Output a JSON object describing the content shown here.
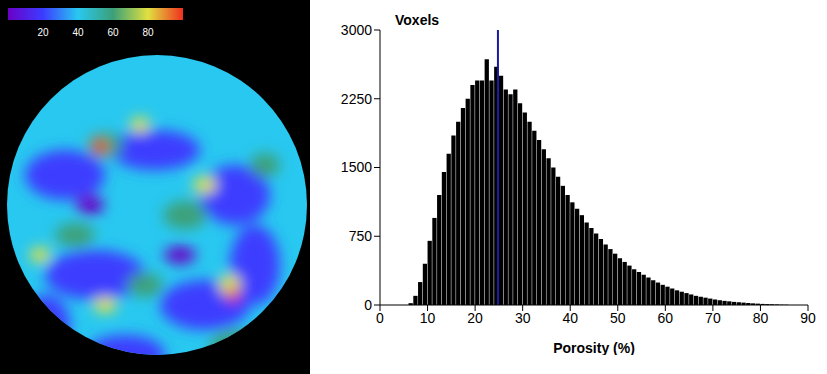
{
  "chart_data": [
    {
      "type": "histogram",
      "y_label": "Voxels",
      "x_label": "Porosity (%)",
      "bins": [
        6,
        7,
        8,
        9,
        10,
        11,
        12,
        13,
        14,
        15,
        16,
        17,
        18,
        19,
        20,
        21,
        22,
        23,
        24,
        25,
        26,
        27,
        28,
        29,
        30,
        31,
        32,
        33,
        34,
        35,
        36,
        37,
        38,
        39,
        40,
        41,
        42,
        43,
        44,
        45,
        46,
        47,
        48,
        49,
        50,
        51,
        52,
        53,
        54,
        55,
        56,
        57,
        58,
        59,
        60,
        61,
        62,
        63,
        64,
        65,
        66,
        67,
        68,
        69,
        70,
        71,
        72,
        73,
        74,
        75,
        76,
        77,
        78,
        79,
        80,
        81,
        82,
        83,
        84,
        85,
        86
      ],
      "values": [
        20,
        100,
        250,
        450,
        700,
        950,
        1200,
        1450,
        1650,
        1850,
        2000,
        2150,
        2250,
        2400,
        2450,
        2450,
        2680,
        2450,
        2600,
        2500,
        2350,
        2300,
        2350,
        2200,
        2100,
        2000,
        1900,
        1800,
        1700,
        1600,
        1500,
        1400,
        1300,
        1200,
        1120,
        1050,
        980,
        900,
        840,
        780,
        720,
        660,
        610,
        560,
        510,
        470,
        430,
        390,
        360,
        330,
        300,
        270,
        245,
        220,
        200,
        180,
        160,
        145,
        130,
        115,
        100,
        90,
        80,
        70,
        60,
        52,
        45,
        40,
        34,
        30,
        26,
        22,
        18,
        15,
        12,
        10,
        8,
        6,
        4,
        3
      ],
      "color": "#000000",
      "vline": 24.8,
      "vline_color": "#1a1aa0",
      "xlim": [
        0,
        90
      ],
      "xticks": [
        0,
        10,
        20,
        30,
        40,
        50,
        60,
        70,
        80,
        90
      ],
      "ylim": [
        0,
        3000
      ],
      "yticks": [
        0,
        750,
        1500,
        2250,
        3000
      ],
      "grid": false
    },
    {
      "type": "image",
      "colorbar_range": [
        0,
        100
      ],
      "colorbar_ticks": [
        20,
        40,
        60,
        80
      ],
      "colors": [
        "#6a00c8",
        "#3c3cff",
        "#28c8f0",
        "#3ca078",
        "#e0e040",
        "#f03020"
      ]
    }
  ]
}
